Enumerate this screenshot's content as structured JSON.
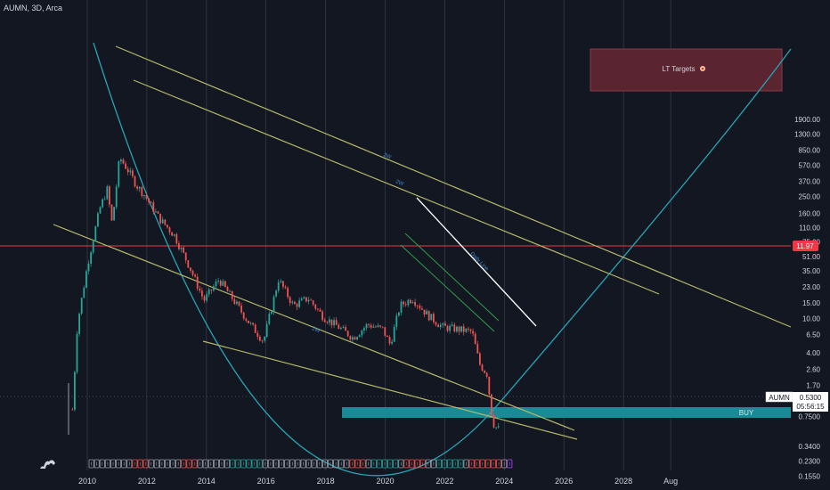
{
  "header": {
    "symbol_line": "AUMN, 3D, Arca"
  },
  "colors": {
    "background": "#131722",
    "channel": "#b5b86a",
    "bowl": "#26a5b5",
    "current_line": "#f23645",
    "buy_zone": "#1b8a96",
    "target_zone": "#5a2530",
    "up_candle": "#26a69a",
    "down_candle": "#ef5350"
  },
  "price_axis": {
    "labels": [
      "1900.00",
      "1300.00",
      "850.00",
      "570.00",
      "370.00",
      "250.00",
      "160.00",
      "110.00",
      "75.00",
      "51.00",
      "35.00",
      "23.00",
      "15.00",
      "10.00",
      "6.50",
      "4.00",
      "2.60",
      "1.70",
      "1.10",
      "0.7500",
      "0.3400",
      "0.2300",
      "0.1550"
    ]
  },
  "time_axis": {
    "labels": [
      "2010",
      "2012",
      "2014",
      "2016",
      "2018",
      "2020",
      "2022",
      "2024",
      "2026",
      "2028",
      "Aug"
    ]
  },
  "tags": {
    "current_price": "11.97",
    "symbol_tag": "AUMN",
    "last_price": "0.5300",
    "countdown": "05:56:15"
  },
  "annotations": {
    "target_box": "LT Targets",
    "buy_zone": "BUY",
    "channel_label_1": "2W",
    "channel_label_2": "2W",
    "lower_label": "2W",
    "trend_label": "Daily Line"
  },
  "chart_data": {
    "type": "candlestick",
    "title": "AUMN, 3D, Arca",
    "scale": "log",
    "ylim": [
      0.12,
      2300
    ],
    "xlim": [
      "2008-09",
      "2030-04"
    ],
    "current_price": 11.97,
    "last_price": 0.53,
    "price_path": [
      [
        "2009-07",
        0.9
      ],
      [
        "2009-09",
        8.5
      ],
      [
        "2010-01",
        40
      ],
      [
        "2010-06",
        180
      ],
      [
        "2010-09",
        300
      ],
      [
        "2010-11",
        120
      ],
      [
        "2011-02",
        700
      ],
      [
        "2011-05",
        520
      ],
      [
        "2011-09",
        330
      ],
      [
        "2011-12",
        260
      ],
      [
        "2012-06",
        140
      ],
      [
        "2012-12",
        90
      ],
      [
        "2013-06",
        40
      ],
      [
        "2013-12",
        16
      ],
      [
        "2014-06",
        28
      ],
      [
        "2014-12",
        16
      ],
      [
        "2015-06",
        9
      ],
      [
        "2015-12",
        5.5
      ],
      [
        "2016-06",
        28
      ],
      [
        "2016-12",
        14
      ],
      [
        "2017-06",
        17
      ],
      [
        "2017-12",
        10.5
      ],
      [
        "2018-06",
        8
      ],
      [
        "2018-12",
        6
      ],
      [
        "2019-06",
        8.5
      ],
      [
        "2019-12",
        7.5
      ],
      [
        "2020-03",
        5
      ],
      [
        "2020-07",
        14
      ],
      [
        "2020-12",
        17
      ],
      [
        "2021-06",
        11
      ],
      [
        "2021-12",
        8
      ],
      [
        "2022-06",
        7.5
      ],
      [
        "2022-12",
        7
      ],
      [
        "2023-03",
        3
      ],
      [
        "2023-06",
        2.3
      ],
      [
        "2023-08",
        0.75
      ],
      [
        "2023-09",
        0.58
      ],
      [
        "2023-11",
        0.53
      ]
    ],
    "buy_zone": [
      0.34,
      0.4
    ],
    "target_zone": [
      270,
      950
    ],
    "grid": true
  }
}
